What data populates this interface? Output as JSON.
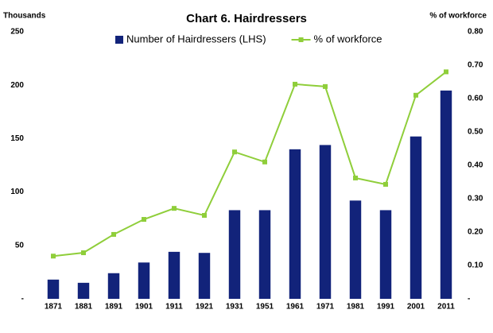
{
  "chart_data": {
    "type": "bar-line",
    "title": "Chart 6. Hairdressers",
    "y_label": "Thousands",
    "y2_label": "% of workforce",
    "categories": [
      "1871",
      "1881",
      "1891",
      "1901",
      "1911",
      "1921",
      "1931",
      "1951",
      "1961",
      "1971",
      "1981",
      "1991",
      "2001",
      "2011"
    ],
    "series": [
      {
        "name": "Number of Hairdressers (LHS)",
        "color": "#12237a",
        "kind": "bar",
        "values": [
          18,
          15,
          24,
          34,
          44,
          43,
          83,
          83,
          140,
          144,
          92,
          83,
          152,
          195
        ]
      },
      {
        "name": "% of workforce",
        "color": "#8fce3a",
        "kind": "line",
        "axis": "y2",
        "values": [
          0.128,
          0.138,
          0.193,
          0.238,
          0.271,
          0.25,
          0.44,
          0.41,
          0.643,
          0.636,
          0.362,
          0.343,
          0.61,
          0.68
        ]
      }
    ],
    "ylim": [
      0,
      250
    ],
    "yticks": [
      {
        "value": 0,
        "label": "-"
      },
      50,
      100,
      150,
      200,
      250
    ],
    "y2lim": [
      0,
      0.8
    ],
    "y2ticks": [
      {
        "value": 0,
        "label": "-"
      },
      {
        "value": 0.1,
        "label": "0.10"
      },
      {
        "value": 0.2,
        "label": "0.20"
      },
      {
        "value": 0.3,
        "label": "0.30"
      },
      {
        "value": 0.4,
        "label": "0.40"
      },
      {
        "value": 0.5,
        "label": "0.50"
      },
      {
        "value": 0.6,
        "label": "0.60"
      },
      {
        "value": 0.7,
        "label": "0.70"
      },
      {
        "value": 0.8,
        "label": "0.80"
      }
    ],
    "grid": false,
    "legend": "top"
  }
}
